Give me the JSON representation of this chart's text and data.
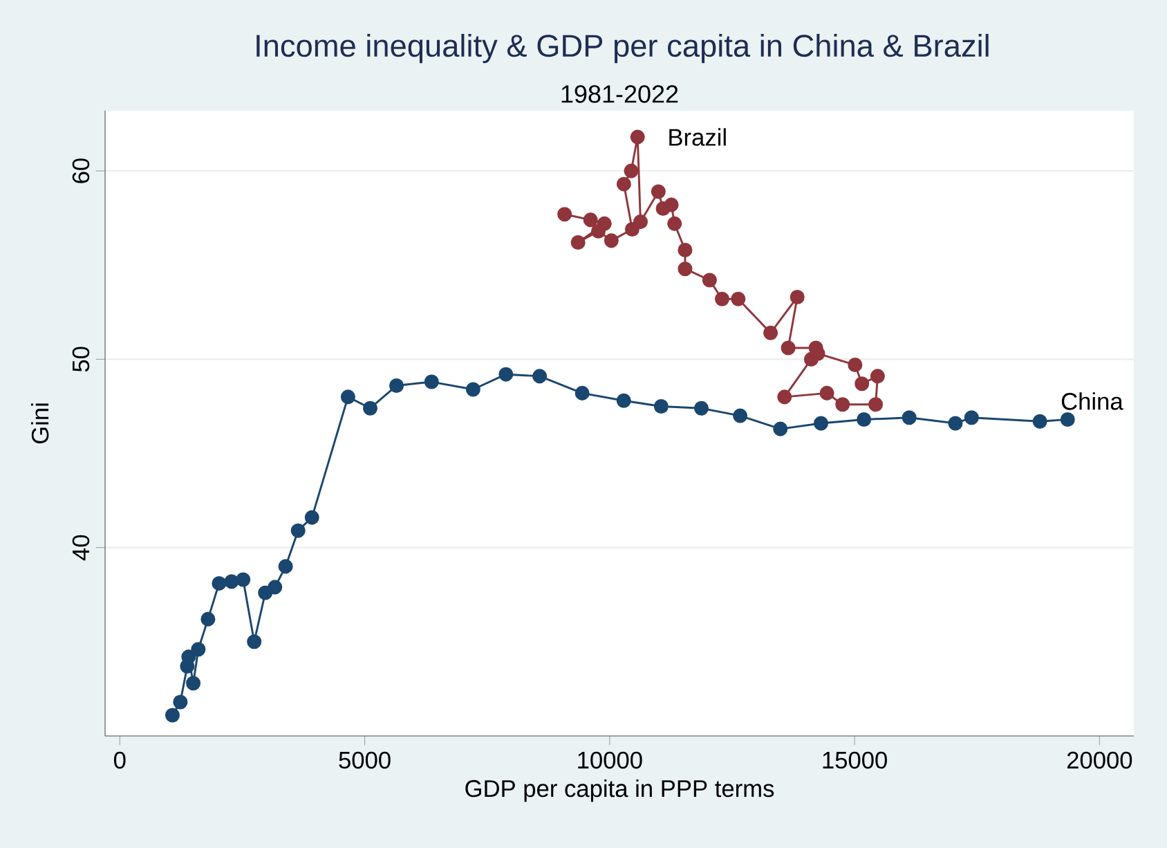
{
  "chart_data": {
    "type": "line",
    "title": "Income inequality & GDP per capita in China & Brazil",
    "subtitle": "1981-2022",
    "xlabel": "GDP per capita in PPP terms",
    "ylabel": "Gini",
    "xlim": [
      -300,
      20700
    ],
    "ylim": [
      30,
      63.2
    ],
    "xticks": [
      0,
      5000,
      10000,
      15000,
      20000
    ],
    "yticks": [
      40,
      50,
      60
    ],
    "grid": "y",
    "marker": "circle",
    "line_style": "solid",
    "series": [
      {
        "color": "#1a476f",
        "x": [
          1075,
          1236,
          1377,
          1405,
          1500,
          1603,
          1801,
          2027,
          2282,
          2518,
          2744,
          2970,
          3168,
          3385,
          3640,
          3923,
          4659,
          5112,
          5649,
          6365,
          7213,
          7883,
          8571,
          9440,
          10288,
          11052,
          11872,
          12664,
          13485,
          14314,
          15191,
          16116,
          17058,
          17388,
          18783,
          19349
        ],
        "values": [
          31.1,
          31.8,
          33.7,
          34.2,
          32.8,
          34.6,
          36.2,
          38.1,
          38.2,
          38.3,
          35.0,
          37.6,
          37.9,
          39.0,
          40.9,
          41.6,
          48.0,
          47.4,
          48.6,
          48.8,
          48.4,
          49.2,
          49.1,
          48.2,
          47.8,
          47.5,
          47.4,
          47.0,
          46.3,
          46.6,
          46.8,
          46.9,
          46.6,
          46.9,
          46.7,
          46.8
        ]
      },
      {
        "color": "#90353b",
        "x": [
          9080,
          9610,
          9893,
          9355,
          9770,
          10035,
          10460,
          10290,
          10440,
          10570,
          10630,
          10995,
          11090,
          11260,
          11325,
          11540,
          11540,
          12040,
          12295,
          12625,
          13285,
          13830,
          13645,
          14210,
          14115,
          13570,
          14435,
          14755,
          15430,
          15470,
          15150,
          15010,
          14250
        ],
        "values": [
          57.7,
          57.4,
          57.2,
          56.2,
          56.8,
          56.3,
          56.9,
          59.3,
          60.0,
          61.8,
          57.3,
          58.9,
          58.0,
          58.2,
          57.2,
          55.8,
          54.8,
          54.2,
          53.2,
          53.2,
          51.4,
          53.3,
          50.6,
          50.6,
          50.0,
          48.0,
          48.2,
          47.6,
          47.6,
          49.1,
          48.7,
          49.7,
          50.3
        ]
      }
    ],
    "annotations": [
      {
        "text": "Brazil",
        "x": 10570,
        "y": 61.8
      },
      {
        "text": "China",
        "x": 19349,
        "y": 46.8
      }
    ]
  }
}
